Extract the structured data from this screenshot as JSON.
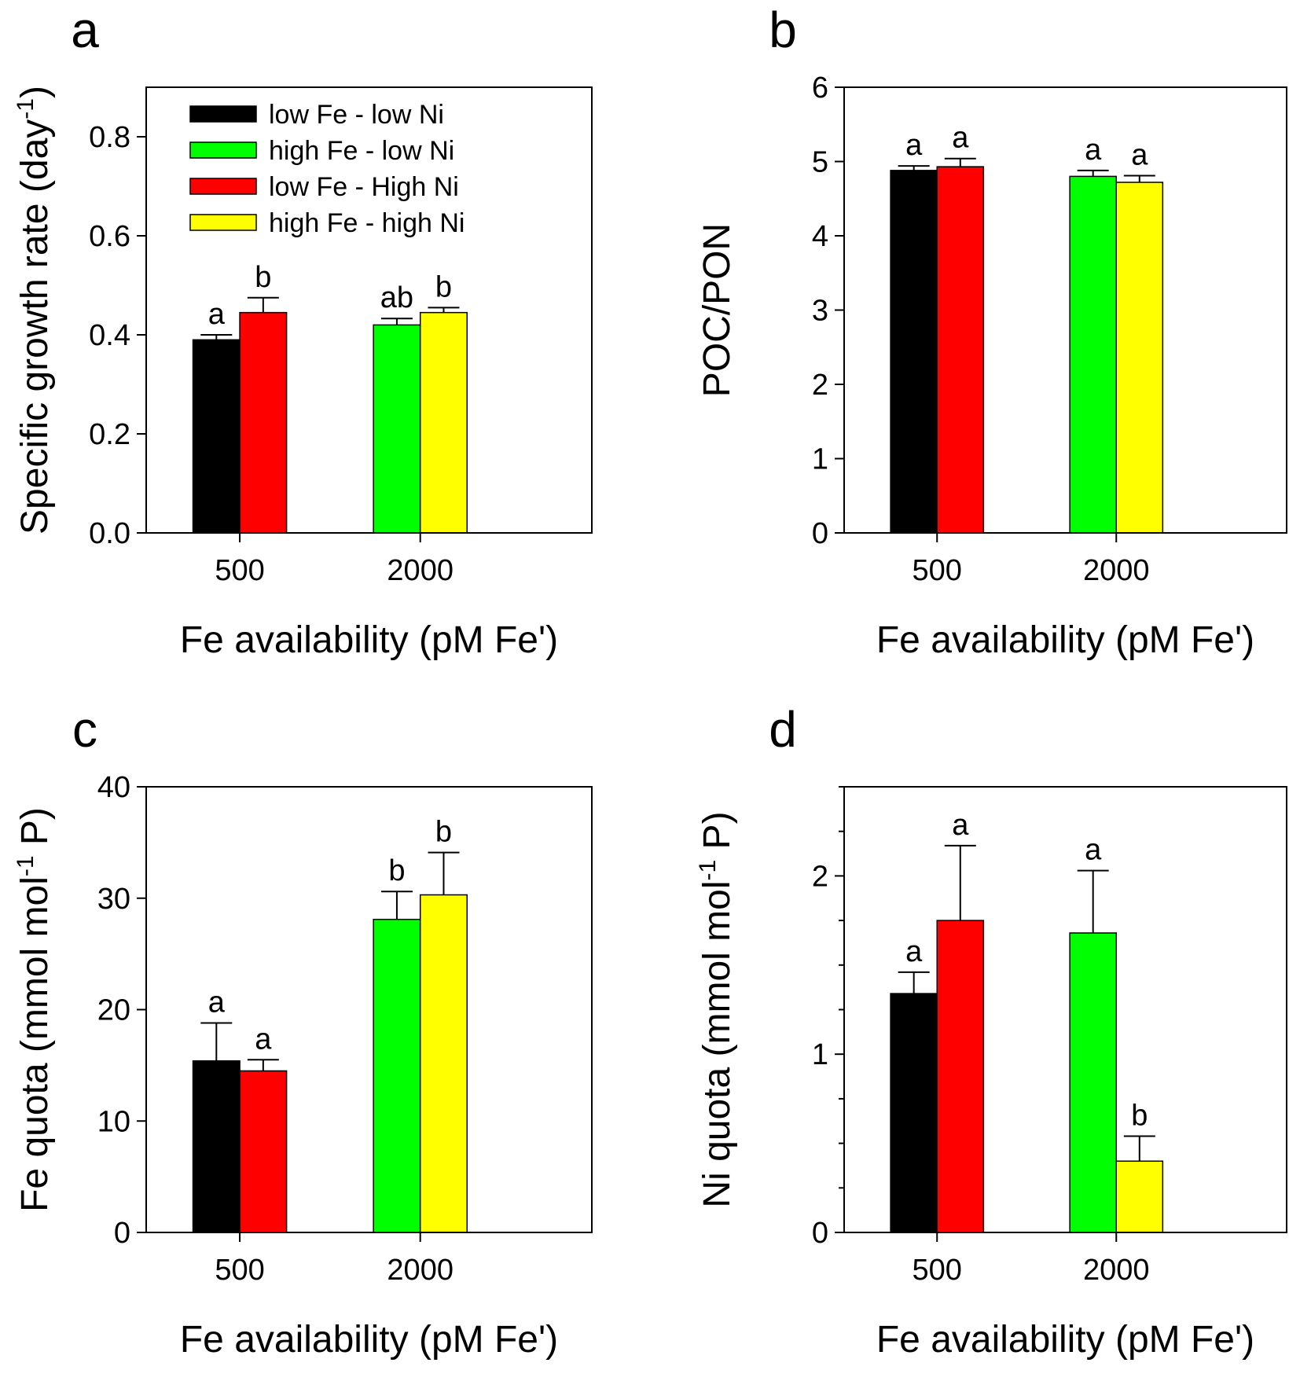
{
  "figure": {
    "bar_colors": {
      "low Fe - low Ni": "#000000",
      "high Fe - low Ni": "#00ff00",
      "low Fe - High Ni": "#ff0000",
      "high Fe - high Ni": "#ffff00"
    }
  },
  "chart_data": [
    {
      "panel": "a",
      "type": "bar",
      "title": "",
      "xlabel": "Fe availability (pM Fe')",
      "ylabel": "Specific growth rate (day",
      "ylabel_sup": "-1",
      "ylabel_tail": ")",
      "ylim": [
        0,
        0.9
      ],
      "yticks": [
        0.0,
        0.2,
        0.4,
        0.6,
        0.8
      ],
      "ytick_labels": [
        "0.0",
        "0.2",
        "0.4",
        "0.6",
        "0.8"
      ],
      "minor_yticks": [],
      "categories": [
        "500",
        "2000"
      ],
      "legend": {
        "position": "top-left",
        "entries": [
          "low Fe - low Ni",
          "high Fe - low Ni",
          "low Fe - High Ni",
          "high Fe - high Ni"
        ],
        "colors": [
          "#000000",
          "#00ff00",
          "#ff0000",
          "#ffff00"
        ]
      },
      "bars": [
        {
          "category": "500",
          "series": "low Fe - low Ni",
          "color": "#000000",
          "value": 0.39,
          "error": 0.01,
          "label": "a"
        },
        {
          "category": "500",
          "series": "low Fe - High Ni",
          "color": "#ff0000",
          "value": 0.445,
          "error": 0.03,
          "label": "b"
        },
        {
          "category": "2000",
          "series": "high Fe - low Ni",
          "color": "#00ff00",
          "value": 0.42,
          "error": 0.013,
          "label": "ab"
        },
        {
          "category": "2000",
          "series": "high Fe - high Ni",
          "color": "#ffff00",
          "value": 0.445,
          "error": 0.01,
          "label": "b"
        }
      ]
    },
    {
      "panel": "b",
      "type": "bar",
      "title": "",
      "xlabel": "Fe availability (pM Fe')",
      "ylabel": "POC/PON",
      "ylabel_sup": "",
      "ylabel_tail": "",
      "ylim": [
        0,
        6
      ],
      "yticks": [
        0,
        1,
        2,
        3,
        4,
        5,
        6
      ],
      "ytick_labels": [
        "0",
        "1",
        "2",
        "3",
        "4",
        "5",
        "6"
      ],
      "minor_yticks": [],
      "categories": [
        "500",
        "2000"
      ],
      "bars": [
        {
          "category": "500",
          "series": "low Fe - low Ni",
          "color": "#000000",
          "value": 4.88,
          "error": 0.06,
          "label": "a"
        },
        {
          "category": "500",
          "series": "low Fe - High Ni",
          "color": "#ff0000",
          "value": 4.93,
          "error": 0.11,
          "label": "a"
        },
        {
          "category": "2000",
          "series": "high Fe - low Ni",
          "color": "#00ff00",
          "value": 4.8,
          "error": 0.08,
          "label": "a"
        },
        {
          "category": "2000",
          "series": "high Fe - high Ni",
          "color": "#ffff00",
          "value": 4.72,
          "error": 0.09,
          "label": "a"
        }
      ]
    },
    {
      "panel": "c",
      "type": "bar",
      "title": "",
      "xlabel": "Fe availability (pM Fe')",
      "ylabel": "Fe quota (mmol mol",
      "ylabel_sup": "-1",
      "ylabel_tail": " P)",
      "ylim": [
        0,
        40
      ],
      "yticks": [
        0,
        10,
        20,
        30,
        40
      ],
      "ytick_labels": [
        "0",
        "10",
        "20",
        "30",
        "40"
      ],
      "minor_yticks": [],
      "categories": [
        "500",
        "2000"
      ],
      "bars": [
        {
          "category": "500",
          "series": "low Fe - low Ni",
          "color": "#000000",
          "value": 15.4,
          "error": 3.4,
          "label": "a"
        },
        {
          "category": "500",
          "series": "low Fe - High Ni",
          "color": "#ff0000",
          "value": 14.5,
          "error": 1.0,
          "label": "a"
        },
        {
          "category": "2000",
          "series": "high Fe - low Ni",
          "color": "#00ff00",
          "value": 28.1,
          "error": 2.5,
          "label": "b"
        },
        {
          "category": "2000",
          "series": "high Fe - high Ni",
          "color": "#ffff00",
          "value": 30.3,
          "error": 3.8,
          "label": "b"
        }
      ]
    },
    {
      "panel": "d",
      "type": "bar",
      "title": "",
      "xlabel": "Fe availability (pM Fe')",
      "ylabel": "Ni quota (mmol mol",
      "ylabel_sup": "-1",
      "ylabel_tail": " P)",
      "ylim": [
        0,
        2.5
      ],
      "yticks": [
        0,
        1,
        2
      ],
      "ytick_labels": [
        "0",
        "1",
        "2"
      ],
      "minor_yticks": [
        0.25,
        0.5,
        0.75,
        1.25,
        1.5,
        1.75,
        2.25,
        2.5
      ],
      "categories": [
        "500",
        "2000"
      ],
      "bars": [
        {
          "category": "500",
          "series": "low Fe - low Ni",
          "color": "#000000",
          "value": 1.34,
          "error": 0.12,
          "label": "a"
        },
        {
          "category": "500",
          "series": "low Fe - High Ni",
          "color": "#ff0000",
          "value": 1.75,
          "error": 0.42,
          "label": "a"
        },
        {
          "category": "2000",
          "series": "high Fe - low Ni",
          "color": "#00ff00",
          "value": 1.68,
          "error": 0.35,
          "label": "a"
        },
        {
          "category": "2000",
          "series": "high Fe - high Ni",
          "color": "#ffff00",
          "value": 0.4,
          "error": 0.14,
          "label": "b"
        }
      ]
    }
  ]
}
